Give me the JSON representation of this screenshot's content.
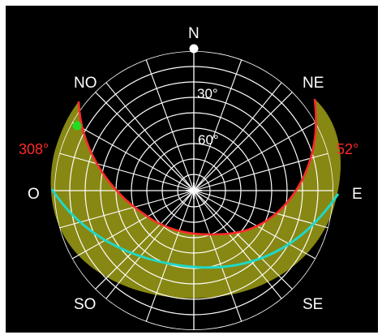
{
  "labels": {
    "north": "N",
    "northeast": "NE",
    "east": "E",
    "southeast": "SE",
    "southwest": "SO",
    "west": "O",
    "northwest": "NO",
    "azimuth_left": "308°",
    "azimuth_right": "52°",
    "altitude_30": "30°",
    "altitude_60": "60°"
  },
  "colors": {
    "background": "#000000",
    "grid": "#ffffff",
    "sun_band": "#8a8a13",
    "boundary": "#ff2a2a",
    "path": "#1ed8c8",
    "marker": "#22dd22"
  }
}
